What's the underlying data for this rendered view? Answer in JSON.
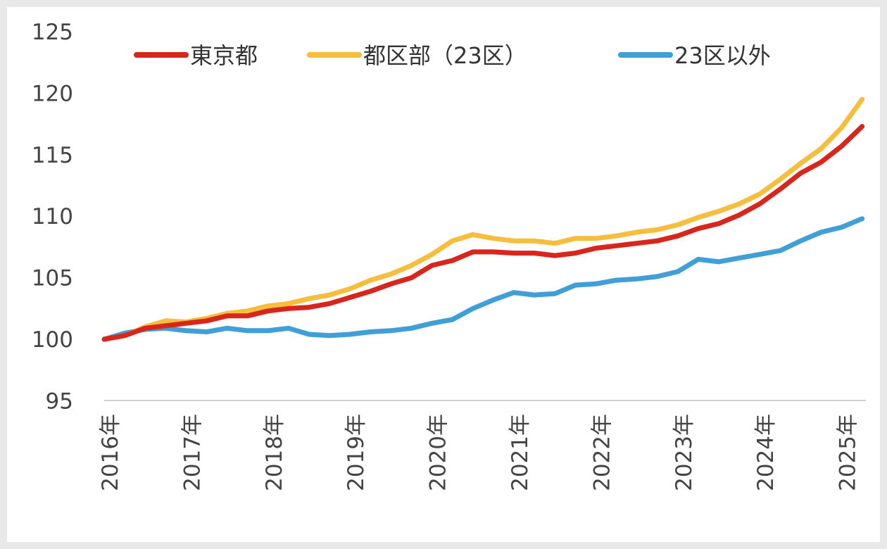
{
  "chart_data": {
    "type": "line",
    "title": "",
    "xlabel": "",
    "ylabel": "",
    "ylim": [
      95,
      125
    ],
    "yticks": [
      "95",
      "100",
      "105",
      "110",
      "115",
      "120",
      "125"
    ],
    "xtick_labels": [
      "2016年",
      "2017年",
      "2018年",
      "2019年",
      "2020年",
      "2021年",
      "2022年",
      "2023年",
      "2024年",
      "2025年"
    ],
    "x": [
      "2016-01",
      "2016-04",
      "2016-07",
      "2016-10",
      "2017-01",
      "2017-04",
      "2017-07",
      "2017-10",
      "2018-01",
      "2018-04",
      "2018-07",
      "2018-10",
      "2019-01",
      "2019-04",
      "2019-07",
      "2019-10",
      "2020-01",
      "2020-04",
      "2020-07",
      "2020-10",
      "2021-01",
      "2021-04",
      "2021-07",
      "2021-10",
      "2022-01",
      "2022-04",
      "2022-07",
      "2022-10",
      "2023-01",
      "2023-04",
      "2023-07",
      "2023-10",
      "2024-01",
      "2024-04",
      "2024-07",
      "2024-10",
      "2025-01",
      "2025-04"
    ],
    "grid": false,
    "legend_position": "top",
    "series": [
      {
        "name": "東京都",
        "color": "#d9261c",
        "values": [
          100,
          100.3,
          100.9,
          101.1,
          101.3,
          101.5,
          101.9,
          101.9,
          102.3,
          102.5,
          102.6,
          102.9,
          103.4,
          103.9,
          104.5,
          105.0,
          106.0,
          106.4,
          107.1,
          107.1,
          107.0,
          107.0,
          106.8,
          107.0,
          107.4,
          107.6,
          107.8,
          108.0,
          108.4,
          109.0,
          109.4,
          110.1,
          111.0,
          112.2,
          113.5,
          114.4,
          115.7,
          117.3
        ]
      },
      {
        "name": "都区部（23区）",
        "color": "#f5be3c",
        "values": [
          100,
          100.3,
          101.0,
          101.5,
          101.4,
          101.7,
          102.1,
          102.3,
          102.7,
          102.9,
          103.3,
          103.6,
          104.1,
          104.8,
          105.3,
          106.0,
          106.9,
          108.0,
          108.5,
          108.2,
          108.0,
          108.0,
          107.8,
          108.2,
          108.2,
          108.4,
          108.7,
          108.9,
          109.3,
          109.9,
          110.4,
          111.0,
          111.8,
          113.0,
          114.3,
          115.5,
          117.2,
          119.5
        ]
      },
      {
        "name": "23区以外",
        "color": "#3f9fd6",
        "values": [
          100,
          100.5,
          100.8,
          100.9,
          100.7,
          100.6,
          100.9,
          100.7,
          100.7,
          100.9,
          100.4,
          100.3,
          100.4,
          100.6,
          100.7,
          100.9,
          101.3,
          101.6,
          102.5,
          103.2,
          103.8,
          103.6,
          103.7,
          104.4,
          104.5,
          104.8,
          104.9,
          105.1,
          105.5,
          106.5,
          106.3,
          106.6,
          106.9,
          107.2,
          108.0,
          108.7,
          109.1,
          109.8
        ]
      }
    ]
  }
}
